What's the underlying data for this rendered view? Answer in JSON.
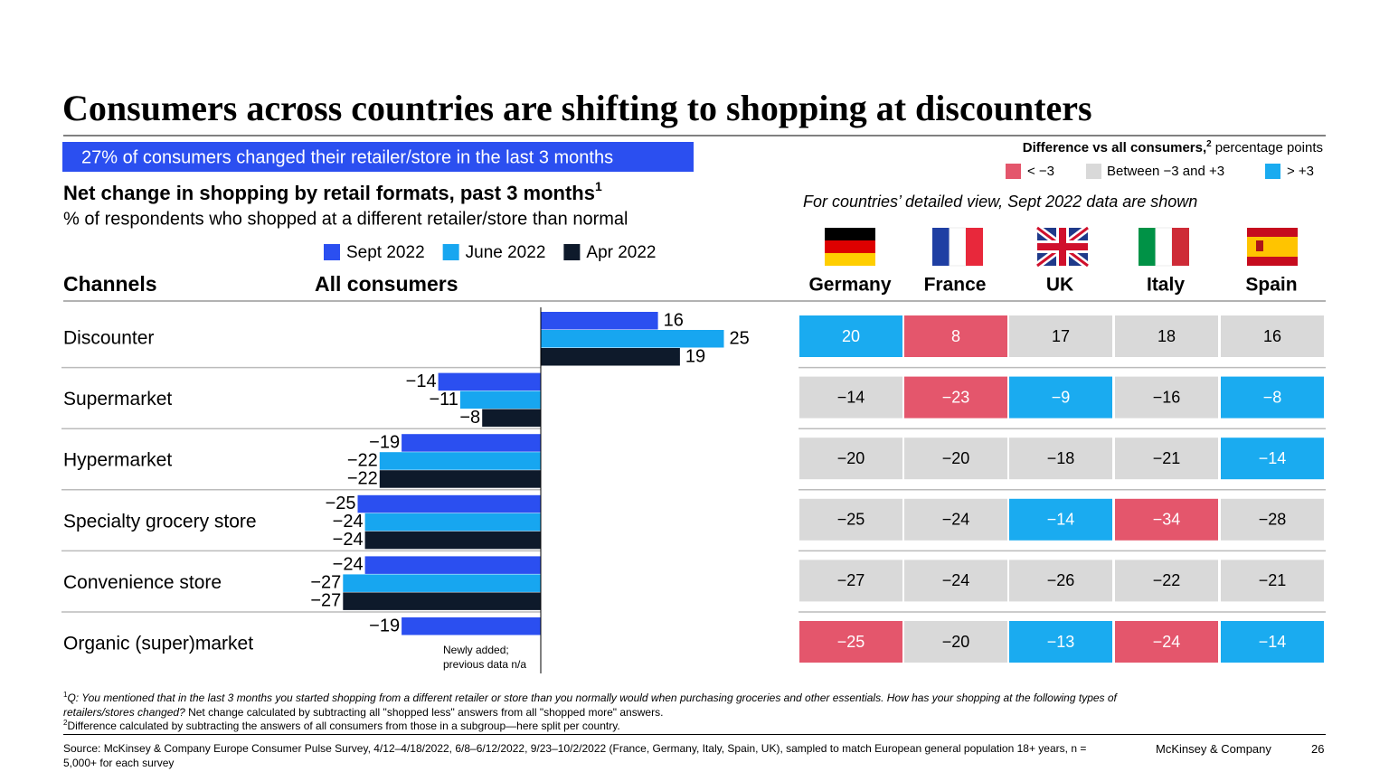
{
  "title": "Consumers across countries are shifting to shopping at discounters",
  "banner": "27% of consumers changed their retailer/store in the last 3 months",
  "chart_data": {
    "type": "bar",
    "orientation": "horizontal",
    "title": "Net change in shopping by retail formats, past 3 months",
    "title_note": "1",
    "subtitle": "% of respondents who shopped at a different retailer/store than normal",
    "category_header": "Channels",
    "value_header": "All consumers",
    "categories": [
      "Discounter",
      "Supermarket",
      "Hypermarket",
      "Specialty grocery store",
      "Convenience store",
      "Organic (super)market"
    ],
    "series": [
      {
        "name": "Sept 2022",
        "color": "#2b4ff0",
        "values": [
          16,
          -14,
          -19,
          -25,
          -24,
          -19
        ],
        "value_labels": [
          "16",
          "−14",
          "−19",
          "−25",
          "−24",
          "−19"
        ]
      },
      {
        "name": "June 2022",
        "color": "#17a6f0",
        "values": [
          25,
          -11,
          -22,
          -24,
          -27,
          null
        ],
        "value_labels": [
          "25",
          "−11",
          "−22",
          "−24",
          "−27",
          null
        ]
      },
      {
        "name": "Apr 2022",
        "color": "#0e1a2b",
        "values": [
          19,
          -8,
          -22,
          -24,
          -27,
          null
        ],
        "value_labels": [
          "19",
          "−8",
          "−22",
          "−24",
          "−27",
          null
        ]
      }
    ],
    "xlim": [
      -30,
      30
    ],
    "annotation": [
      "Newly added;",
      "previous data n/a"
    ]
  },
  "difference_legend": {
    "title": "Difference vs all consumers,",
    "title_note": "2",
    "unit": "percentage points",
    "thresholds": [
      -3,
      3
    ],
    "items": [
      {
        "label": "< −3",
        "color": "#e4566c"
      },
      {
        "label": "Between −3 and +3",
        "color": "#d9d9d9"
      },
      {
        "label": "> +3",
        "color": "#1aabf0"
      }
    ]
  },
  "countries_note": "For countries’ detailed view, Sept 2022 data are shown",
  "countries": [
    {
      "name": "Germany",
      "values": [
        20,
        -14,
        -20,
        -25,
        -27,
        -25
      ],
      "value_labels": [
        "20",
        "−14",
        "−20",
        "−25",
        "−27",
        "−25"
      ]
    },
    {
      "name": "France",
      "values": [
        8,
        -23,
        -20,
        -24,
        -24,
        -20
      ],
      "value_labels": [
        "8",
        "−23",
        "−20",
        "−24",
        "−24",
        "−20"
      ]
    },
    {
      "name": "UK",
      "values": [
        17,
        -9,
        -18,
        -14,
        -26,
        -13
      ],
      "value_labels": [
        "17",
        "−9",
        "−18",
        "−14",
        "−26",
        "−13"
      ]
    },
    {
      "name": "Italy",
      "values": [
        18,
        -16,
        -21,
        -34,
        -22,
        -24
      ],
      "value_labels": [
        "18",
        "−16",
        "−21",
        "−34",
        "−22",
        "−24"
      ]
    },
    {
      "name": "Spain",
      "values": [
        16,
        -8,
        -14,
        -28,
        -21,
        -14
      ],
      "value_labels": [
        "16",
        "−8",
        "−14",
        "−28",
        "−21",
        "−14"
      ]
    }
  ],
  "footnotes": [
    {
      "marker": "1",
      "question": "Q: You mentioned that in the last 3 months you started shopping from a different retailer or store than you normally would when purchasing groceries and other essentials. How has your shopping at the following types of retailers/stores changed?",
      "text": "Net change calculated by subtracting all \"shopped less\" answers from all \"shopped more\" answers."
    },
    {
      "marker": "2",
      "text": "Difference calculated by subtracting the answers of all consumers from those in a subgroup—here split per country."
    }
  ],
  "source": "Source: McKinsey & Company Europe Consumer Pulse Survey, 4/12–4/18/2022, 6/8–6/12/2022, 9/23–10/2/2022 (France, Germany, Italy, Spain, UK), sampled to match European general population 18+ years, n = 5,000+ for each survey",
  "brand": "McKinsey & Company",
  "page_number": "26"
}
